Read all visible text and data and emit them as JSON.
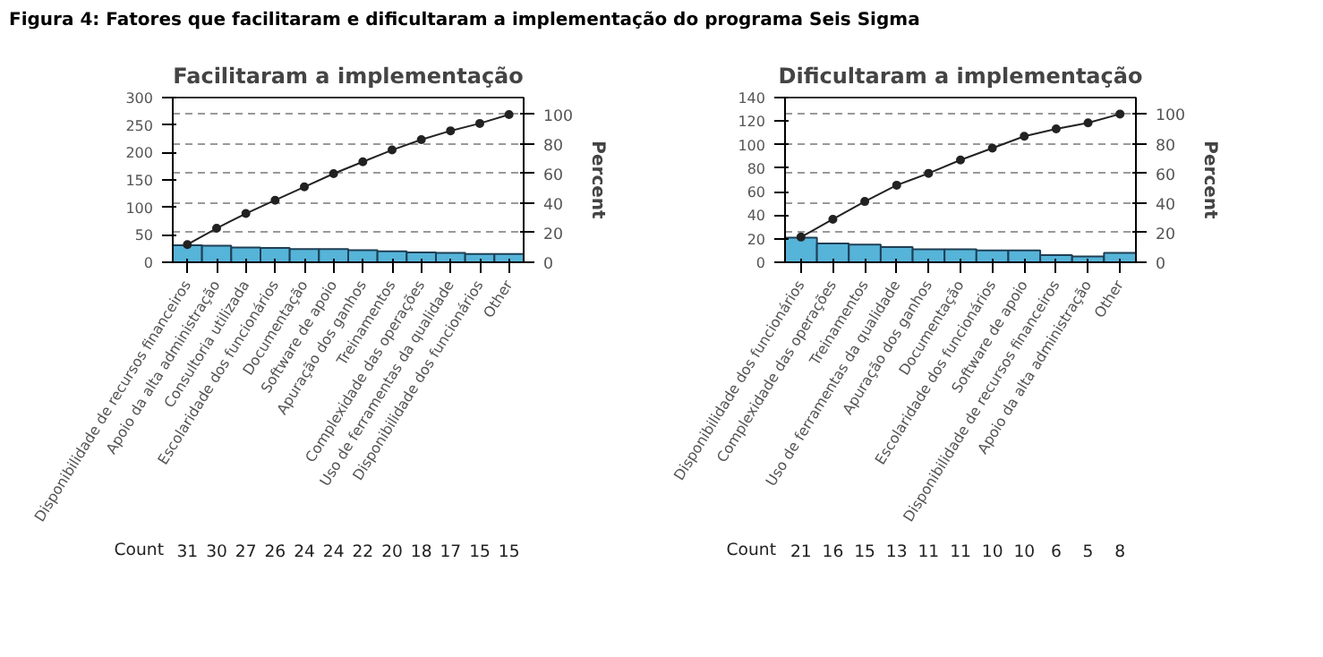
{
  "chart_data": [
    {
      "type": "bar",
      "title": "Facilitaram a implementação",
      "y2label": "Percent",
      "categories": [
        "Disponibilidade de recursos financeiros",
        "Apoio da alta administração",
        "Consultoria utilizada",
        "Escolaridade dos funcionários",
        "Documentação",
        "Software de apoio",
        "Apuração dos ganhos",
        "Treinamentos",
        "Complexidade das operações",
        "Uso de ferramentas da qualidade",
        "Disponibilidade dos funcionários",
        "Other"
      ],
      "series": [
        {
          "color": "#56b4d9",
          "values": [
            31,
            30,
            27,
            26,
            24,
            24,
            22,
            20,
            18,
            17,
            15,
            15
          ],
          "value_labels": [
            "31",
            "30",
            "27",
            "26",
            "24",
            "24",
            "22",
            "20",
            "18",
            "17",
            "15",
            "15"
          ]
        },
        {
          "type": "line",
          "axis": "y2",
          "color": "#222222",
          "marker": "circle",
          "values": [
            12,
            23,
            33,
            42,
            51,
            60,
            68,
            76,
            83,
            89,
            94,
            100
          ]
        }
      ],
      "ylim": [
        0,
        300
      ],
      "yticks": [
        0,
        50,
        100,
        150,
        200,
        250,
        300
      ],
      "y2lim": [
        0,
        111.5
      ],
      "y2ticks": [
        0,
        20,
        40,
        60,
        80,
        100
      ],
      "grid": "y2",
      "annotations": [
        "Count",
        "Figura 4: Fatores que facilitaram e dificultaram a implementação do programa Seis Sigma"
      ]
    },
    {
      "type": "bar",
      "title": "Dificultaram a implementação",
      "y2label": "Percent",
      "categories": [
        "Disponibilidade dos funcionários",
        "Complexidade das operações",
        "Treinamentos",
        "Uso de ferramentas da qualidade",
        "Apuração dos ganhos",
        "Documentação",
        "Escolaridade dos funcionários",
        "Software de apoio",
        "Disponibilidade de recursos financeiros",
        "Apoio da alta administração",
        "Other"
      ],
      "series": [
        {
          "color": "#56b4d9",
          "values": [
            21,
            16,
            15,
            13,
            11,
            11,
            10,
            10,
            6,
            5,
            8
          ],
          "value_labels": [
            "21",
            "16",
            "15",
            "13",
            "11",
            "11",
            "10",
            "10",
            "6",
            "5",
            "8"
          ]
        },
        {
          "type": "line",
          "axis": "y2",
          "color": "#222222",
          "marker": "circle",
          "values": [
            17,
            29,
            41,
            52,
            60,
            69,
            77,
            85,
            90,
            94,
            100
          ]
        }
      ],
      "ylim": [
        0,
        140
      ],
      "yticks": [
        0,
        20,
        40,
        60,
        80,
        100,
        120,
        140
      ],
      "y2lim": [
        0,
        111.1
      ],
      "y2ticks": [
        0,
        20,
        40,
        60,
        80,
        100
      ],
      "grid": "y2",
      "annotations": [
        "Count"
      ]
    }
  ]
}
